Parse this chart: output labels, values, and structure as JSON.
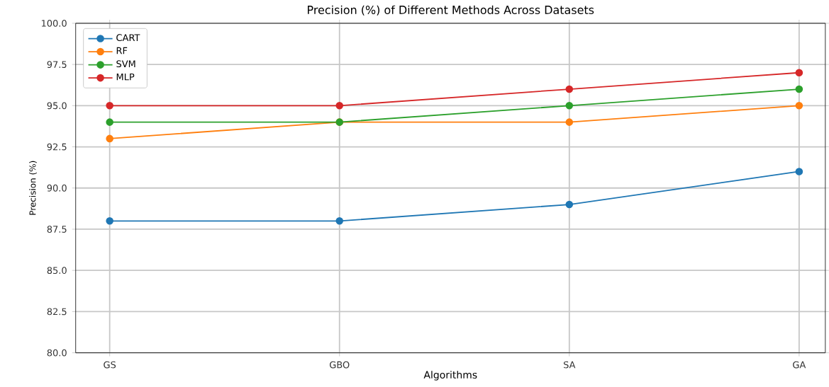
{
  "chart_data": {
    "type": "line",
    "title": "Precision (%) of Different Methods Across Datasets",
    "xlabel": "Algorithms",
    "ylabel": "Precision (%)",
    "categories": [
      "GS",
      "GBO",
      "SA",
      "GA"
    ],
    "series": [
      {
        "name": "CART",
        "color": "#1f77b4",
        "values": [
          88,
          88,
          89,
          91
        ]
      },
      {
        "name": "RF",
        "color": "#ff7f0e",
        "values": [
          93,
          94,
          94,
          95
        ]
      },
      {
        "name": "SVM",
        "color": "#2ca02c",
        "values": [
          94,
          94,
          95,
          96
        ]
      },
      {
        "name": "MLP",
        "color": "#d62728",
        "values": [
          95,
          95,
          96,
          97
        ]
      }
    ],
    "ylim": [
      80,
      100
    ],
    "yticks": [
      {
        "value": 80,
        "label": "80.0"
      },
      {
        "value": 82.5,
        "label": "82.5"
      },
      {
        "value": 85,
        "label": "85.0"
      },
      {
        "value": 87.5,
        "label": "87.5"
      },
      {
        "value": 90,
        "label": "90.0"
      },
      {
        "value": 92.5,
        "label": "92.5"
      },
      {
        "value": 95,
        "label": "95.0"
      },
      {
        "value": 97.5,
        "label": "97.5"
      },
      {
        "value": 100,
        "label": "100.0"
      }
    ],
    "grid": true,
    "legend": "top left",
    "marker": "circle",
    "line_style": "solid"
  }
}
